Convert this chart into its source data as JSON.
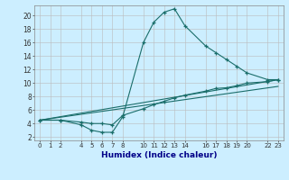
{
  "xlabel": "Humidex (Indice chaleur)",
  "bg_color": "#cceeff",
  "grid_color": "#bbbbbb",
  "line_color": "#1a6e6a",
  "xlim": [
    -0.5,
    23.5
  ],
  "ylim": [
    1.5,
    21.5
  ],
  "xticks": [
    0,
    1,
    2,
    4,
    5,
    6,
    7,
    8,
    10,
    11,
    12,
    13,
    14,
    16,
    17,
    18,
    19,
    20,
    22,
    23
  ],
  "yticks": [
    2,
    4,
    6,
    8,
    10,
    12,
    14,
    16,
    18,
    20
  ],
  "series": [
    {
      "x": [
        0,
        2,
        4,
        5,
        6,
        7,
        8,
        10,
        11,
        12,
        13,
        14,
        16,
        17,
        18,
        19,
        20,
        22,
        23
      ],
      "y": [
        4.5,
        4.5,
        3.8,
        3.0,
        2.7,
        2.7,
        5.0,
        16.0,
        19.0,
        20.5,
        21.0,
        18.5,
        15.5,
        14.5,
        13.5,
        12.5,
        11.5,
        10.5,
        10.5
      ],
      "has_markers": true
    },
    {
      "x": [
        0,
        2,
        4,
        5,
        6,
        7,
        8,
        10,
        11,
        12,
        13,
        14,
        16,
        17,
        18,
        19,
        20,
        22,
        23
      ],
      "y": [
        4.5,
        4.5,
        4.2,
        4.0,
        4.0,
        3.8,
        5.2,
        6.2,
        6.8,
        7.3,
        7.8,
        8.2,
        8.8,
        9.2,
        9.3,
        9.6,
        10.0,
        10.2,
        10.5
      ],
      "has_markers": true
    },
    {
      "x": [
        0,
        23
      ],
      "y": [
        4.5,
        10.5
      ],
      "has_markers": false
    },
    {
      "x": [
        0,
        23
      ],
      "y": [
        4.5,
        9.5
      ],
      "has_markers": false
    }
  ]
}
